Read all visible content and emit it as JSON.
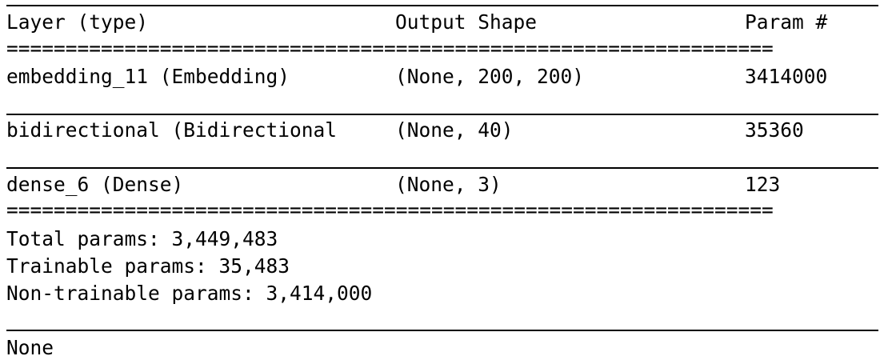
{
  "header": {
    "layer": "Layer (type)",
    "shape": "Output Shape",
    "param": "Param #"
  },
  "rows": [
    {
      "layer": "embedding_11 (Embedding)",
      "shape": "(None, 200, 200)",
      "param": "3414000"
    },
    {
      "layer": "bidirectional (Bidirectional",
      "shape": "(None, 40)",
      "param": "35360"
    },
    {
      "layer": "dense_6 (Dense)",
      "shape": "(None, 3)",
      "param": "123"
    }
  ],
  "summary": {
    "total": "Total params: 3,449,483",
    "trainable": "Trainable params: 35,483",
    "non_trainable": "Non-trainable params: 3,414,000"
  },
  "output": "None",
  "double_rule": "=================================================================",
  "colors": {
    "text": "#000000",
    "background": "#ffffff"
  }
}
